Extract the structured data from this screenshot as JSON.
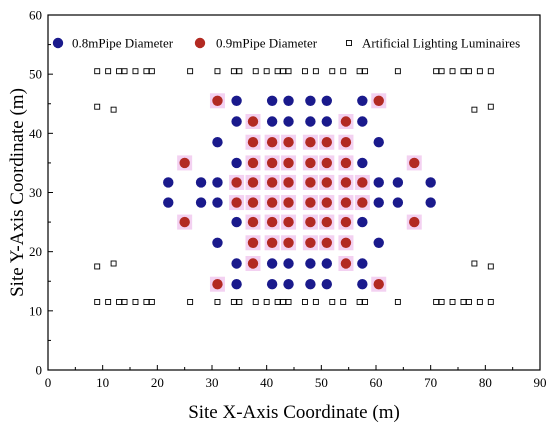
{
  "chart_data": {
    "type": "scatter",
    "xlabel": "Site X-Axis Coordinate (m)",
    "ylabel": "Site Y-Axis Coordinate (m)",
    "xlim": [
      0,
      90
    ],
    "ylim": [
      0,
      60
    ],
    "xticks": [
      "0",
      "10",
      "20",
      "30",
      "40",
      "50",
      "60",
      "70",
      "80",
      "90"
    ],
    "yticks": [
      "0",
      "10",
      "20",
      "30",
      "40",
      "50",
      "60"
    ],
    "grid": false,
    "legend_position": "top",
    "series": [
      {
        "name": "0.8mPipe Diameter",
        "marker": "circle",
        "color": "#1a1a8c",
        "points": [
          [
            34.5,
            45.5
          ],
          [
            41,
            45.5
          ],
          [
            44,
            45.5
          ],
          [
            48,
            45.5
          ],
          [
            51,
            45.5
          ],
          [
            57.5,
            45.5
          ],
          [
            34.5,
            42
          ],
          [
            41,
            42
          ],
          [
            44,
            42
          ],
          [
            48,
            42
          ],
          [
            51,
            42
          ],
          [
            57.5,
            42
          ],
          [
            31,
            38.5
          ],
          [
            60.5,
            38.5
          ],
          [
            34.5,
            35
          ],
          [
            57.5,
            35
          ],
          [
            22,
            31.7
          ],
          [
            28,
            31.7
          ],
          [
            31,
            31.7
          ],
          [
            60.5,
            31.7
          ],
          [
            64,
            31.7
          ],
          [
            70,
            31.7
          ],
          [
            22,
            28.3
          ],
          [
            28,
            28.3
          ],
          [
            31,
            28.3
          ],
          [
            60.5,
            28.3
          ],
          [
            64,
            28.3
          ],
          [
            70,
            28.3
          ],
          [
            34.5,
            25
          ],
          [
            57.5,
            25
          ],
          [
            31,
            21.5
          ],
          [
            60.5,
            21.5
          ],
          [
            34.5,
            18
          ],
          [
            41,
            18
          ],
          [
            44,
            18
          ],
          [
            48,
            18
          ],
          [
            51,
            18
          ],
          [
            57.5,
            18
          ],
          [
            34.5,
            14.5
          ],
          [
            41,
            14.5
          ],
          [
            44,
            14.5
          ],
          [
            48,
            14.5
          ],
          [
            51,
            14.5
          ],
          [
            57.5,
            14.5
          ]
        ]
      },
      {
        "name": "0.9mPipe Diameter",
        "marker": "circle",
        "color": "#b22a22",
        "points": [
          [
            31,
            45.5
          ],
          [
            60.5,
            45.5
          ],
          [
            37.5,
            42
          ],
          [
            54.5,
            42
          ],
          [
            37.5,
            38.5
          ],
          [
            41,
            38.5
          ],
          [
            44,
            38.5
          ],
          [
            48,
            38.5
          ],
          [
            51,
            38.5
          ],
          [
            54.5,
            38.5
          ],
          [
            25,
            35
          ],
          [
            37.5,
            35
          ],
          [
            41,
            35
          ],
          [
            44,
            35
          ],
          [
            48,
            35
          ],
          [
            51,
            35
          ],
          [
            54.5,
            35
          ],
          [
            67,
            35
          ],
          [
            34.5,
            31.7
          ],
          [
            37.5,
            31.7
          ],
          [
            41,
            31.7
          ],
          [
            44,
            31.7
          ],
          [
            48,
            31.7
          ],
          [
            51,
            31.7
          ],
          [
            54.5,
            31.7
          ],
          [
            57.5,
            31.7
          ],
          [
            34.5,
            28.3
          ],
          [
            37.5,
            28.3
          ],
          [
            41,
            28.3
          ],
          [
            44,
            28.3
          ],
          [
            48,
            28.3
          ],
          [
            51,
            28.3
          ],
          [
            54.5,
            28.3
          ],
          [
            57.5,
            28.3
          ],
          [
            25,
            25
          ],
          [
            37.5,
            25
          ],
          [
            41,
            25
          ],
          [
            44,
            25
          ],
          [
            48,
            25
          ],
          [
            51,
            25
          ],
          [
            54.5,
            25
          ],
          [
            67,
            25
          ],
          [
            37.5,
            21.5
          ],
          [
            41,
            21.5
          ],
          [
            44,
            21.5
          ],
          [
            48,
            21.5
          ],
          [
            51,
            21.5
          ],
          [
            54.5,
            21.5
          ],
          [
            37.5,
            18
          ],
          [
            54.5,
            18
          ],
          [
            31,
            14.5
          ],
          [
            60.5,
            14.5
          ]
        ]
      },
      {
        "name": "Artificial Lighting Luminaires",
        "marker": "square",
        "color": "#000000",
        "points": [
          [
            9,
            50.5
          ],
          [
            11,
            50.5
          ],
          [
            13,
            50.5
          ],
          [
            14,
            50.5
          ],
          [
            16,
            50.5
          ],
          [
            18,
            50.5
          ],
          [
            19,
            50.5
          ],
          [
            26,
            50.5
          ],
          [
            31,
            50.5
          ],
          [
            34,
            50.5
          ],
          [
            35,
            50.5
          ],
          [
            38,
            50.5
          ],
          [
            40,
            50.5
          ],
          [
            42,
            50.5
          ],
          [
            43,
            50.5
          ],
          [
            44,
            50.5
          ],
          [
            47,
            50.5
          ],
          [
            49,
            50.5
          ],
          [
            52,
            50.5
          ],
          [
            54,
            50.5
          ],
          [
            57,
            50.5
          ],
          [
            58,
            50.5
          ],
          [
            64,
            50.5
          ],
          [
            71,
            50.5
          ],
          [
            72,
            50.5
          ],
          [
            74,
            50.5
          ],
          [
            76,
            50.5
          ],
          [
            77,
            50.5
          ],
          [
            79,
            50.5
          ],
          [
            81,
            50.5
          ],
          [
            9,
            11.5
          ],
          [
            11,
            11.5
          ],
          [
            13,
            11.5
          ],
          [
            14,
            11.5
          ],
          [
            16,
            11.5
          ],
          [
            18,
            11.5
          ],
          [
            19,
            11.5
          ],
          [
            26,
            11.5
          ],
          [
            31,
            11.5
          ],
          [
            34,
            11.5
          ],
          [
            35,
            11.5
          ],
          [
            38,
            11.5
          ],
          [
            40,
            11.5
          ],
          [
            42,
            11.5
          ],
          [
            43,
            11.5
          ],
          [
            44,
            11.5
          ],
          [
            47,
            11.5
          ],
          [
            49,
            11.5
          ],
          [
            52,
            11.5
          ],
          [
            54,
            11.5
          ],
          [
            57,
            11.5
          ],
          [
            58,
            11.5
          ],
          [
            64,
            11.5
          ],
          [
            71,
            11.5
          ],
          [
            72,
            11.5
          ],
          [
            74,
            11.5
          ],
          [
            76,
            11.5
          ],
          [
            77,
            11.5
          ],
          [
            79,
            11.5
          ],
          [
            81,
            11.5
          ],
          [
            9,
            44.5
          ],
          [
            12,
            44
          ],
          [
            78,
            44
          ],
          [
            81,
            44.5
          ],
          [
            9,
            17.5
          ],
          [
            12,
            18
          ],
          [
            78,
            18
          ],
          [
            81,
            17.5
          ]
        ]
      }
    ]
  }
}
